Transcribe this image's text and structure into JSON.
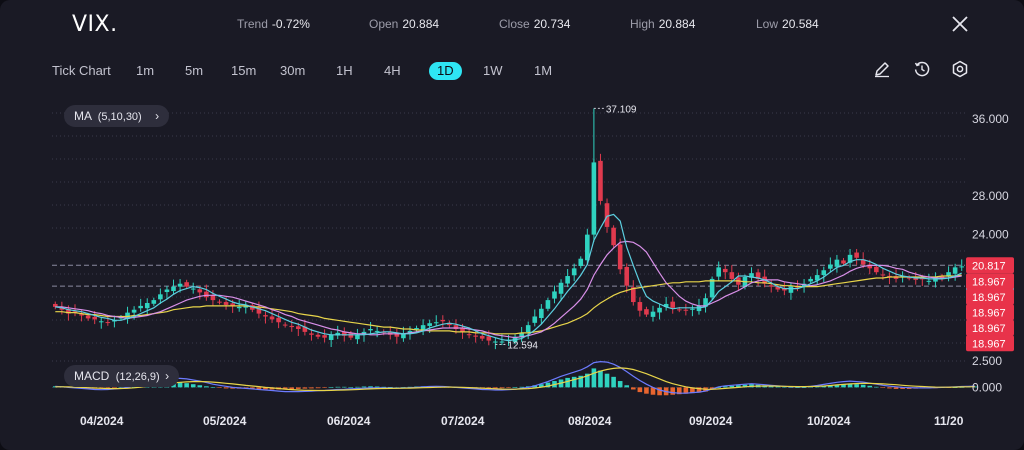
{
  "header": {
    "symbol": "VIX.",
    "stats": [
      {
        "label": "Trend",
        "value": "-0.72%"
      },
      {
        "label": "Open",
        "value": "20.884"
      },
      {
        "label": "Close",
        "value": "20.734"
      },
      {
        "label": "High",
        "value": "20.884"
      },
      {
        "label": "Low",
        "value": "20.584"
      }
    ]
  },
  "toolbar": {
    "timeframes": [
      "Tick Chart",
      "1m",
      "5m",
      "15m",
      "30m",
      "1H",
      "4H",
      "1D",
      "1W",
      "1M"
    ],
    "active": "1D",
    "tools": [
      "pencil-icon",
      "history-icon",
      "settings-icon"
    ]
  },
  "indicators": {
    "ma_label": "MA",
    "ma_params": "(5,10,30)",
    "macd_label": "MACD",
    "macd_params": "(12,26,9)"
  },
  "colors": {
    "up": "#2fd3c0",
    "down": "#e03a4e",
    "ma5": "#5ccfe0",
    "ma10": "#d88fe8",
    "ma30": "#e8d54a",
    "accent": "#2ee6f4",
    "price_tag_red": "#e8334a",
    "background": "#1a1a25"
  },
  "chart_data": {
    "type": "candlestick",
    "x_labels": [
      "04/2024",
      "05/2024",
      "06/2024",
      "07/2024",
      "08/2024",
      "09/2024",
      "10/2024",
      "11/20"
    ],
    "y_ticks": [
      "36.000",
      "28.000",
      "24.000"
    ],
    "ylim": [
      11.5,
      38.5
    ],
    "max_marker": "37.109",
    "min_marker": "12.594",
    "current_tags": [
      "20.817",
      "20.734"
    ],
    "stack_tags": [
      "18.967",
      "18.967",
      "18.967",
      "18.967",
      "18.967",
      "18.967",
      "18.967"
    ],
    "macd_ticks": [
      "2.500",
      "0.000"
    ],
    "macd_ylim": [
      -1.2,
      2.6
    ],
    "closes": [
      16.5,
      16.2,
      15.8,
      15.9,
      15.6,
      15.3,
      15.2,
      15.0,
      14.9,
      15.1,
      15.4,
      15.9,
      16.2,
      16.6,
      16.9,
      17.2,
      17.8,
      18.3,
      18.6,
      18.9,
      18.6,
      18.4,
      18.0,
      17.5,
      17.2,
      17.0,
      16.7,
      16.6,
      16.5,
      16.6,
      16.2,
      15.8,
      15.5,
      15.2,
      14.9,
      14.6,
      14.4,
      14.2,
      13.9,
      13.6,
      13.4,
      13.3,
      13.6,
      13.8,
      13.5,
      13.3,
      13.6,
      13.9,
      14.2,
      14.0,
      13.8,
      13.6,
      13.4,
      13.7,
      14.0,
      14.3,
      14.6,
      14.8,
      14.9,
      15.0,
      14.6,
      14.2,
      13.9,
      13.6,
      13.4,
      13.2,
      13.0,
      12.9,
      12.9,
      13.1,
      13.4,
      13.8,
      14.6,
      15.5,
      16.3,
      17.2,
      18.1,
      19.0,
      19.7,
      20.5,
      21.5,
      24.0,
      31.5,
      27.5,
      24.8,
      22.9,
      20.4,
      18.7,
      17.0,
      16.1,
      15.7,
      16.0,
      16.4,
      16.8,
      16.4,
      16.2,
      16.1,
      16.3,
      16.6,
      17.4,
      19.4,
      20.6,
      20.1,
      19.4,
      18.8,
      19.6,
      20.0,
      19.4,
      18.9,
      18.6,
      18.3,
      18.2,
      18.6,
      18.5,
      18.9,
      19.4,
      19.8,
      20.3,
      20.9,
      21.4,
      21.0,
      21.9,
      21.6,
      20.9,
      20.5,
      20.1,
      19.8,
      19.6,
      19.4,
      19.7,
      19.5,
      19.3,
      19.4,
      19.2,
      19.6,
      19.4,
      20.1,
      20.6,
      20.7
    ],
    "ma5": [
      16.5,
      16.4,
      16.2,
      16.1,
      16.0,
      15.8,
      15.6,
      15.4,
      15.3,
      15.1,
      15.1,
      15.3,
      15.5,
      15.8,
      16.1,
      16.4,
      16.9,
      17.3,
      17.8,
      18.2,
      18.4,
      18.6,
      18.5,
      18.3,
      17.9,
      17.6,
      17.3,
      17.0,
      16.8,
      16.7,
      16.5,
      16.3,
      16.1,
      15.8,
      15.5,
      15.2,
      14.9,
      14.7,
      14.4,
      14.1,
      13.9,
      13.7,
      13.6,
      13.6,
      13.6,
      13.6,
      13.6,
      13.6,
      13.7,
      13.8,
      13.9,
      13.9,
      13.8,
      13.7,
      13.7,
      13.8,
      14.0,
      14.3,
      14.5,
      14.7,
      14.8,
      14.7,
      14.5,
      14.3,
      14.0,
      13.7,
      13.5,
      13.3,
      13.1,
      13.0,
      13.1,
      13.2,
      13.6,
      14.1,
      14.7,
      15.5,
      16.3,
      17.2,
      18.1,
      18.9,
      19.8,
      20.9,
      23.4,
      24.7,
      25.9,
      26.1,
      25.4,
      22.7,
      20.8,
      19.0,
      17.6,
      17.1,
      16.8,
      16.5,
      16.3,
      16.4,
      16.4,
      16.4,
      16.4,
      16.5,
      17.2,
      18.1,
      18.6,
      19.1,
      19.7,
      19.7,
      19.6,
      19.5,
      19.3,
      19.0,
      18.6,
      18.4,
      18.4,
      18.4,
      18.6,
      18.9,
      19.2,
      19.6,
      20.1,
      20.6,
      20.8,
      21.2,
      21.4,
      21.4,
      21.2,
      20.9,
      20.5,
      20.2,
      19.9,
      19.7,
      19.6,
      19.5,
      19.5,
      19.4,
      19.4,
      19.4,
      19.5,
      19.7,
      20.0
    ],
    "ma10": [
      16.5,
      16.5,
      16.4,
      16.3,
      16.2,
      16.1,
      15.9,
      15.8,
      15.6,
      15.5,
      15.4,
      15.3,
      15.4,
      15.5,
      15.6,
      15.8,
      16.0,
      16.3,
      16.6,
      16.9,
      17.2,
      17.4,
      17.6,
      17.7,
      17.7,
      17.7,
      17.6,
      17.5,
      17.3,
      17.1,
      16.9,
      16.7,
      16.5,
      16.2,
      16.0,
      15.7,
      15.5,
      15.2,
      15.0,
      14.8,
      14.6,
      14.4,
      14.2,
      14.1,
      13.9,
      13.8,
      13.7,
      13.7,
      13.6,
      13.6,
      13.7,
      13.7,
      13.7,
      13.7,
      13.8,
      13.9,
      14.0,
      14.1,
      14.2,
      14.3,
      14.3,
      14.3,
      14.3,
      14.2,
      14.1,
      14.0,
      13.8,
      13.6,
      13.5,
      13.4,
      13.3,
      13.4,
      13.5,
      13.7,
      13.9,
      14.3,
      14.8,
      15.4,
      16.0,
      16.6,
      17.3,
      18.3,
      19.8,
      20.9,
      21.9,
      22.6,
      23.2,
      23.3,
      23.2,
      22.8,
      22.2,
      21.1,
      20.0,
      19.0,
      18.3,
      17.6,
      17.1,
      16.8,
      16.6,
      16.6,
      16.9,
      17.2,
      17.6,
      17.9,
      18.2,
      18.6,
      19.0,
      19.2,
      19.3,
      19.3,
      19.3,
      19.1,
      19.0,
      18.9,
      18.8,
      18.7,
      18.8,
      19.0,
      19.2,
      19.5,
      19.8,
      20.2,
      20.5,
      20.7,
      20.8,
      20.8,
      20.8,
      20.7,
      20.5,
      20.4,
      20.1,
      19.9,
      19.7,
      19.6,
      19.5,
      19.5,
      19.5,
      19.6,
      19.7
    ],
    "ma30": [
      16.0,
      16.0,
      15.9,
      15.9,
      15.8,
      15.7,
      15.7,
      15.6,
      15.5,
      15.5,
      15.5,
      15.5,
      15.6,
      15.6,
      15.7,
      15.8,
      15.9,
      16.0,
      16.2,
      16.3,
      16.4,
      16.5,
      16.5,
      16.6,
      16.6,
      16.6,
      16.6,
      16.6,
      16.6,
      16.6,
      16.5,
      16.5,
      16.4,
      16.3,
      16.2,
      16.1,
      16.0,
      15.8,
      15.7,
      15.6,
      15.5,
      15.3,
      15.2,
      15.1,
      15.0,
      14.9,
      14.8,
      14.7,
      14.6,
      14.5,
      14.4,
      14.4,
      14.3,
      14.2,
      14.2,
      14.1,
      14.1,
      14.0,
      14.0,
      14.0,
      14.0,
      13.9,
      13.9,
      13.9,
      13.8,
      13.8,
      13.8,
      13.7,
      13.7,
      13.7,
      13.7,
      13.8,
      13.8,
      13.9,
      14.0,
      14.2,
      14.4,
      14.6,
      14.8,
      15.1,
      15.4,
      15.8,
      16.4,
      16.9,
      17.3,
      17.7,
      18.0,
      18.2,
      18.4,
      18.5,
      18.6,
      18.7,
      18.8,
      18.9,
      19.0,
      19.0,
      19.1,
      19.1,
      19.1,
      19.2,
      19.2,
      19.2,
      19.2,
      19.2,
      19.2,
      19.1,
      19.1,
      19.0,
      19.0,
      18.9,
      18.8,
      18.7,
      18.7,
      18.6,
      18.6,
      18.6,
      18.6,
      18.7,
      18.8,
      18.9,
      19.0,
      19.1,
      19.2,
      19.3,
      19.4,
      19.5,
      19.5,
      19.6,
      19.6,
      19.6,
      19.6,
      19.6,
      19.6,
      19.6,
      19.6,
      19.7,
      19.7,
      19.7,
      19.8
    ],
    "macd_hist": [
      0.1,
      0.1,
      0.05,
      0.0,
      -0.05,
      -0.1,
      -0.12,
      -0.12,
      -0.1,
      -0.05,
      0.0,
      0.1,
      0.2,
      0.3,
      0.35,
      0.4,
      0.5,
      0.55,
      0.55,
      0.5,
      0.4,
      0.3,
      0.2,
      0.1,
      0.0,
      -0.05,
      -0.1,
      -0.12,
      -0.12,
      -0.1,
      -0.12,
      -0.15,
      -0.18,
      -0.2,
      -0.2,
      -0.2,
      -0.18,
      -0.15,
      -0.12,
      -0.1,
      -0.08,
      -0.05,
      0.0,
      0.05,
      0.05,
      0.03,
      0.05,
      0.08,
      0.1,
      0.08,
      0.05,
      0.03,
      0.0,
      0.02,
      0.05,
      0.08,
      0.1,
      0.12,
      0.1,
      0.08,
      0.05,
      0.0,
      -0.05,
      -0.08,
      -0.1,
      -0.12,
      -0.12,
      -0.1,
      -0.08,
      -0.05,
      0.0,
      0.05,
      0.1,
      0.2,
      0.3,
      0.45,
      0.6,
      0.75,
      0.9,
      1.0,
      1.1,
      1.3,
      1.8,
      1.6,
      1.3,
      1.0,
      0.6,
      0.2,
      -0.2,
      -0.45,
      -0.6,
      -0.7,
      -0.75,
      -0.75,
      -0.7,
      -0.65,
      -0.6,
      -0.55,
      -0.5,
      -0.4,
      -0.2,
      0.0,
      0.1,
      0.15,
      0.2,
      0.25,
      0.3,
      0.25,
      0.2,
      0.15,
      0.1,
      0.05,
      0.02,
      0.0,
      0.0,
      0.05,
      0.1,
      0.15,
      0.2,
      0.25,
      0.3,
      0.35,
      0.3,
      0.25,
      0.15,
      0.05,
      -0.05,
      -0.1,
      -0.15,
      -0.15,
      -0.15,
      -0.12,
      -0.1,
      -0.1,
      -0.08,
      -0.05,
      -0.02,
      0.0,
      0.02,
      0.05,
      0.08
    ],
    "macd_line": [
      0.1,
      0.05,
      0.0,
      -0.05,
      -0.1,
      -0.15,
      -0.2,
      -0.22,
      -0.2,
      -0.15,
      -0.1,
      0.0,
      0.15,
      0.3,
      0.45,
      0.55,
      0.7,
      0.8,
      0.85,
      0.85,
      0.8,
      0.7,
      0.6,
      0.45,
      0.3,
      0.2,
      0.1,
      0.0,
      -0.05,
      -0.1,
      -0.15,
      -0.2,
      -0.25,
      -0.3,
      -0.35,
      -0.4,
      -0.4,
      -0.4,
      -0.38,
      -0.35,
      -0.32,
      -0.3,
      -0.25,
      -0.2,
      -0.18,
      -0.15,
      -0.12,
      -0.08,
      -0.05,
      -0.05,
      -0.05,
      -0.06,
      -0.08,
      -0.06,
      -0.03,
      0.0,
      0.05,
      0.08,
      0.1,
      0.08,
      0.05,
      0.0,
      -0.05,
      -0.1,
      -0.15,
      -0.2,
      -0.22,
      -0.25,
      -0.25,
      -0.22,
      -0.18,
      -0.1,
      0.0,
      0.15,
      0.35,
      0.55,
      0.8,
      1.05,
      1.25,
      1.45,
      1.65,
      1.95,
      2.35,
      2.45,
      2.4,
      2.2,
      1.9,
      1.5,
      1.05,
      0.65,
      0.3,
      0.0,
      -0.25,
      -0.4,
      -0.5,
      -0.55,
      -0.55,
      -0.5,
      -0.45,
      -0.35,
      -0.15,
      0.05,
      0.15,
      0.2,
      0.25,
      0.3,
      0.35,
      0.3,
      0.25,
      0.2,
      0.15,
      0.1,
      0.05,
      0.05,
      0.05,
      0.1,
      0.18,
      0.28,
      0.38,
      0.48,
      0.55,
      0.6,
      0.55,
      0.5,
      0.4,
      0.3,
      0.2,
      0.12,
      0.05,
      0.0,
      -0.03,
      -0.05,
      -0.05,
      -0.05,
      -0.03,
      0.0,
      0.03,
      0.05,
      0.08,
      0.1,
      0.12
    ],
    "macd_signal": [
      0.05,
      0.05,
      0.04,
      0.02,
      0.0,
      -0.03,
      -0.06,
      -0.09,
      -0.11,
      -0.12,
      -0.11,
      -0.09,
      -0.04,
      0.03,
      0.1,
      0.18,
      0.27,
      0.35,
      0.42,
      0.48,
      0.52,
      0.55,
      0.56,
      0.54,
      0.5,
      0.45,
      0.39,
      0.33,
      0.26,
      0.19,
      0.13,
      0.07,
      0.0,
      -0.05,
      -0.11,
      -0.16,
      -0.21,
      -0.25,
      -0.28,
      -0.29,
      -0.3,
      -0.3,
      -0.29,
      -0.27,
      -0.25,
      -0.23,
      -0.2,
      -0.17,
      -0.15,
      -0.12,
      -0.11,
      -0.1,
      -0.09,
      -0.08,
      -0.07,
      -0.05,
      -0.03,
      -0.01,
      0.01,
      0.02,
      0.03,
      0.02,
      0.0,
      -0.02,
      -0.05,
      -0.08,
      -0.11,
      -0.14,
      -0.16,
      -0.17,
      -0.17,
      -0.15,
      -0.12,
      -0.06,
      0.02,
      0.12,
      0.26,
      0.41,
      0.57,
      0.74,
      0.9,
      1.1,
      1.35,
      1.55,
      1.7,
      1.8,
      1.85,
      1.8,
      1.7,
      1.5,
      1.3,
      1.05,
      0.8,
      0.55,
      0.35,
      0.2,
      0.05,
      -0.05,
      -0.12,
      -0.17,
      -0.18,
      -0.15,
      -0.1,
      -0.05,
      0.0,
      0.05,
      0.1,
      0.12,
      0.13,
      0.13,
      0.12,
      0.1,
      0.08,
      0.07,
      0.07,
      0.08,
      0.1,
      0.13,
      0.18,
      0.23,
      0.28,
      0.33,
      0.36,
      0.38,
      0.38,
      0.36,
      0.33,
      0.29,
      0.25,
      0.2,
      0.15,
      0.11,
      0.08,
      0.05,
      0.03,
      0.02,
      0.02,
      0.03,
      0.04,
      0.05,
      0.06
    ]
  }
}
